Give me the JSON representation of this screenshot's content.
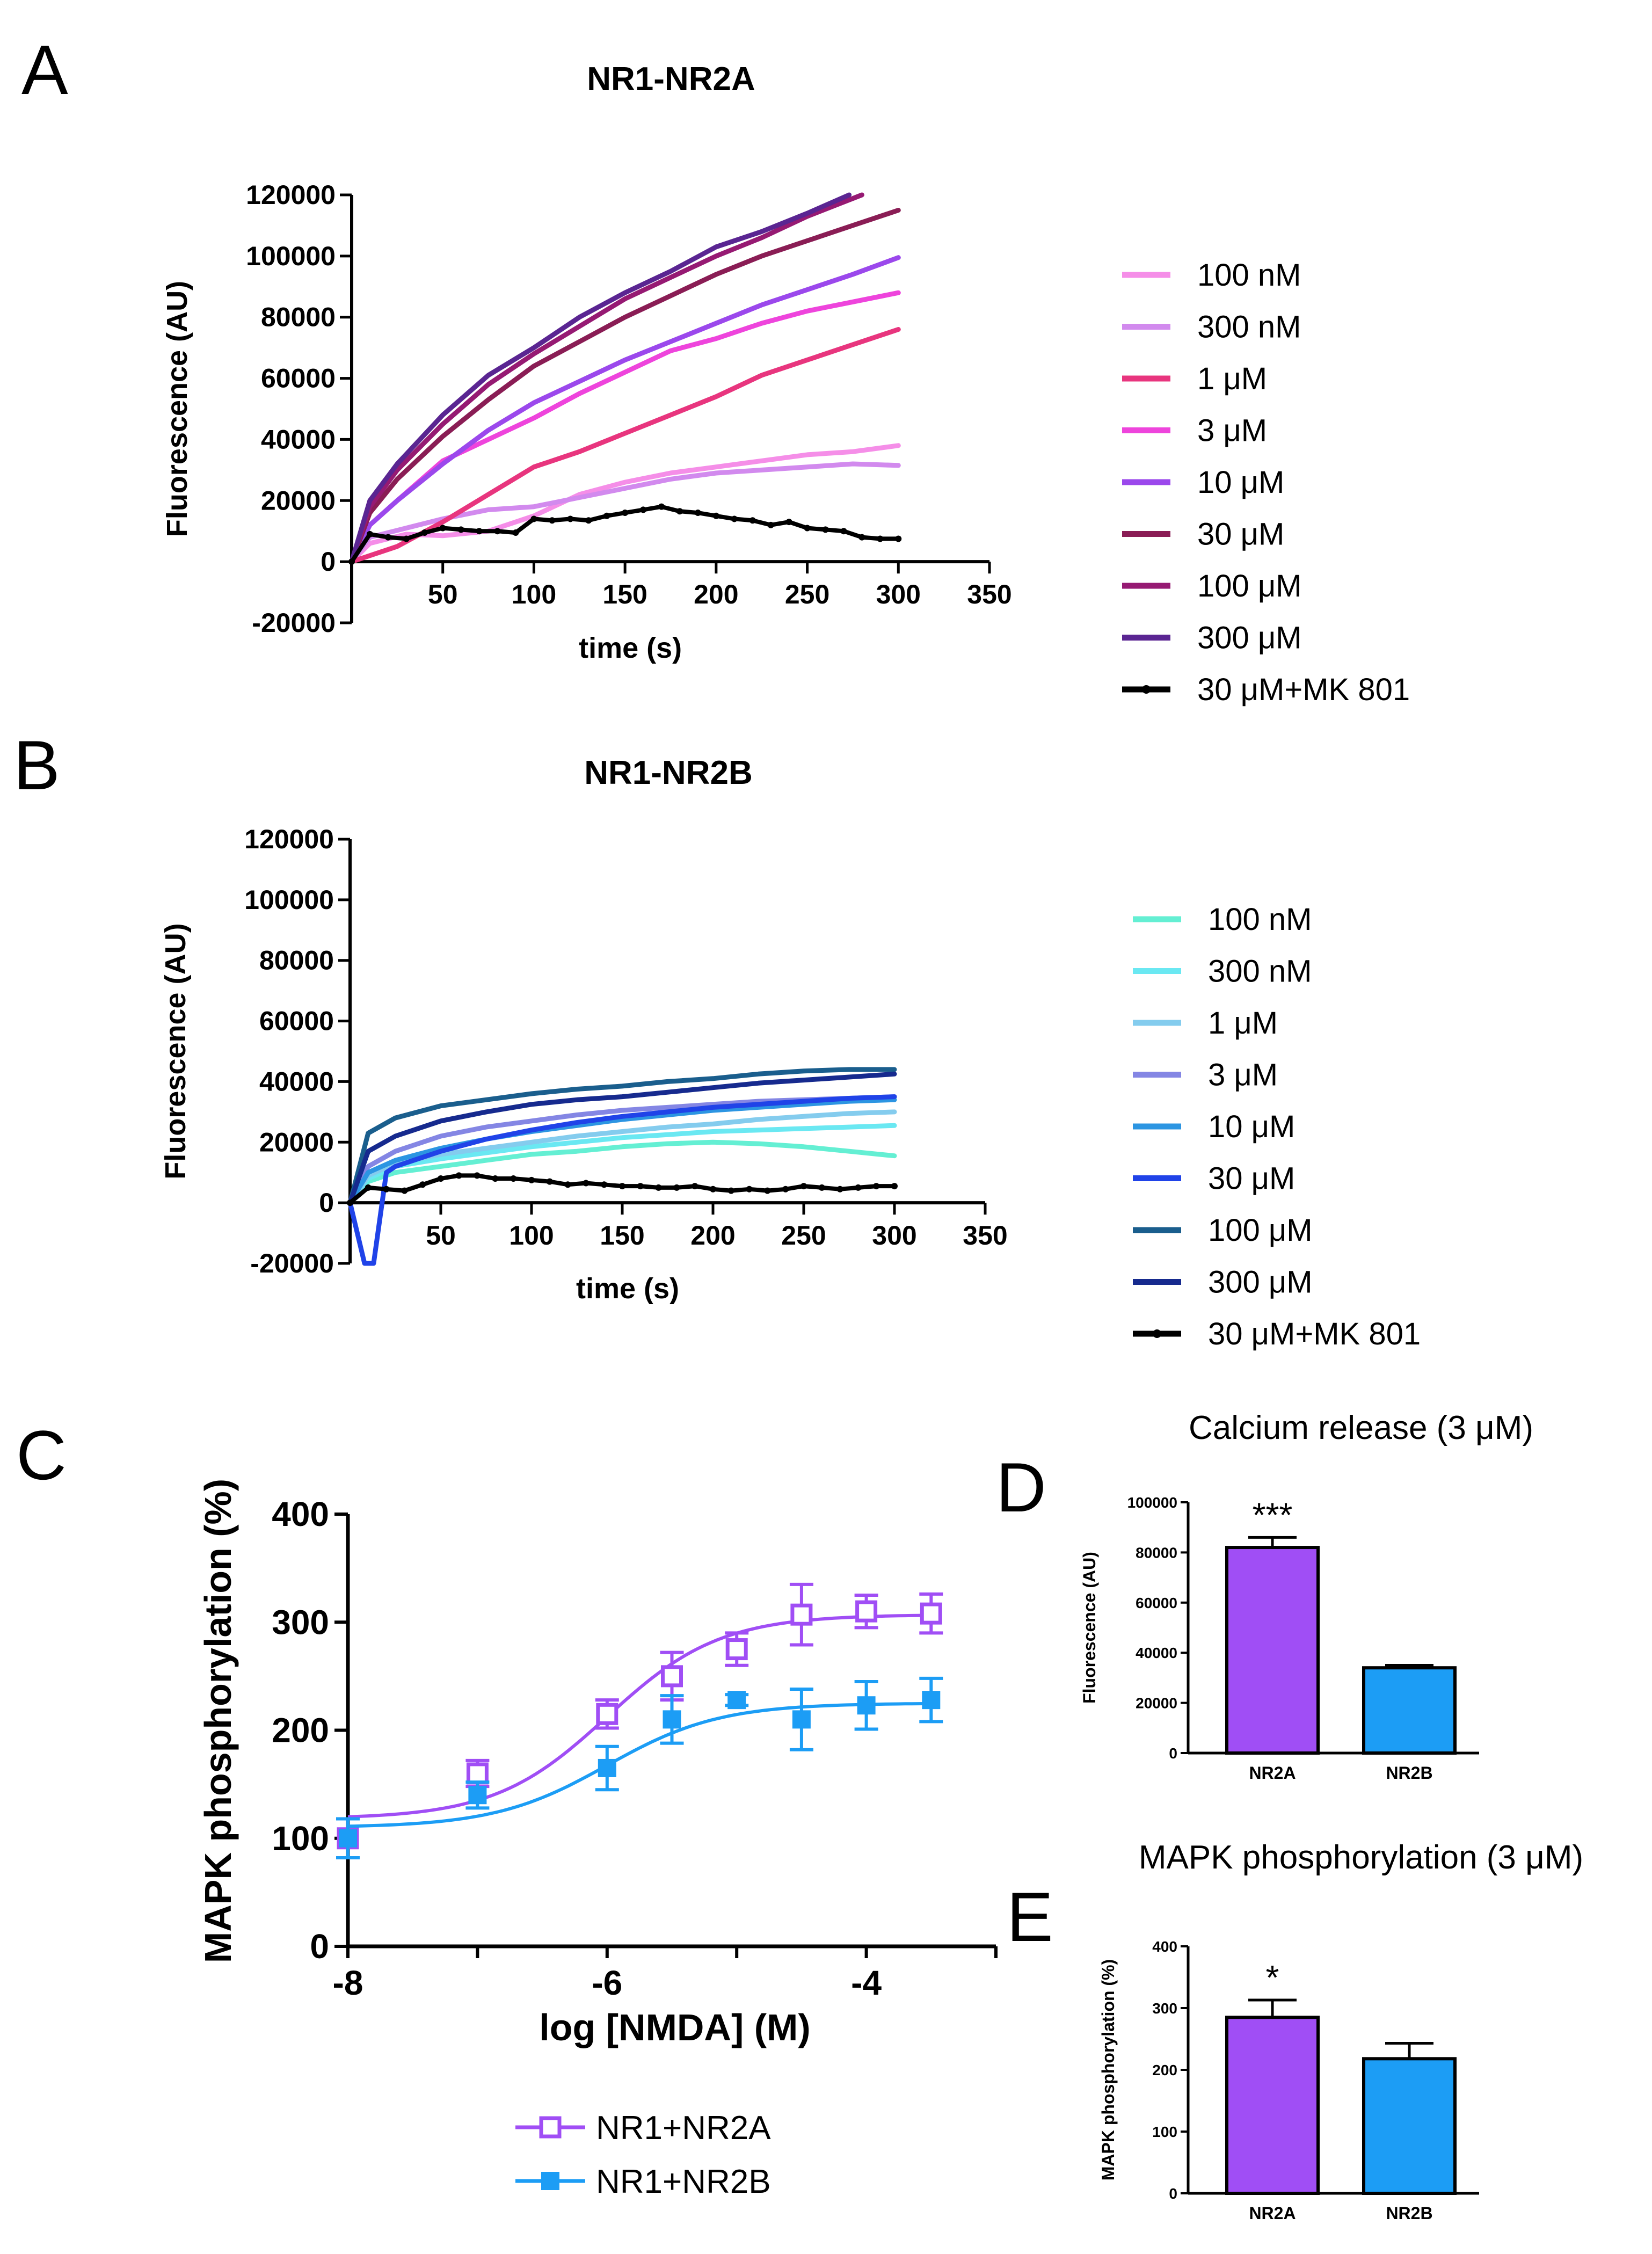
{
  "panel_labels": {
    "A": "A",
    "B": "B",
    "C": "C",
    "D": "D",
    "E": "E"
  },
  "colors": {
    "A": [
      "#f58ee8",
      "#d28aee",
      "#e8357e",
      "#ee44dc",
      "#9b48ec",
      "#8a1d55",
      "#961a73",
      "#5a2592",
      "#000000"
    ],
    "B": [
      "#64efd3",
      "#6ae8f2",
      "#84ccee",
      "#8486e4",
      "#2c95e2",
      "#2043e8",
      "#1a5e8d",
      "#162a8e",
      "#000000"
    ],
    "nr2a": "#a04ef5",
    "nr2b": "#1c9df5"
  },
  "chart_data": [
    {
      "id": "A",
      "type": "line",
      "title": "NR1-NR2A",
      "xlabel": "time (s)",
      "ylabel": "Fluorescence (AU)",
      "xlim": [
        0,
        350
      ],
      "ylim": [
        -20000,
        120000
      ],
      "xticks": [
        50,
        100,
        150,
        200,
        250,
        300,
        350
      ],
      "yticks": [
        -20000,
        0,
        20000,
        40000,
        60000,
        80000,
        100000,
        120000
      ],
      "legend": [
        " 100 nM",
        "300 nM",
        "1 μM",
        "3 μM",
        "10 μM",
        "30 μM",
        "100 μM",
        "300 μM",
        "30 μM+MK 801"
      ],
      "series": [
        {
          "name": "100 nM",
          "x": [
            0,
            10,
            30,
            50,
            75,
            100,
            125,
            150,
            175,
            200,
            225,
            250,
            275,
            300
          ],
          "y": [
            0,
            6000,
            9000,
            8500,
            10000,
            15000,
            22000,
            26000,
            29000,
            31000,
            33000,
            35000,
            36000,
            38000
          ]
        },
        {
          "name": "300 nM",
          "x": [
            0,
            10,
            30,
            50,
            75,
            100,
            125,
            150,
            175,
            200,
            225,
            250,
            275,
            300
          ],
          "y": [
            0,
            8000,
            11000,
            14000,
            17000,
            18000,
            21000,
            24000,
            27000,
            29000,
            30000,
            31000,
            32000,
            31500
          ]
        },
        {
          "name": "1 μM",
          "x": [
            0,
            25,
            50,
            75,
            100,
            125,
            150,
            175,
            200,
            225,
            250,
            275,
            300
          ],
          "y": [
            0,
            5000,
            13000,
            22000,
            31000,
            36000,
            42000,
            48000,
            54000,
            61000,
            66000,
            71000,
            76000
          ]
        },
        {
          "name": "3 μM",
          "x": [
            0,
            10,
            25,
            50,
            75,
            100,
            125,
            150,
            175,
            200,
            225,
            250,
            275,
            300
          ],
          "y": [
            0,
            12000,
            20000,
            33000,
            40000,
            47000,
            55000,
            62000,
            69000,
            73000,
            78000,
            82000,
            85000,
            88000
          ]
        },
        {
          "name": "10 μM",
          "x": [
            0,
            10,
            25,
            50,
            75,
            100,
            125,
            150,
            175,
            200,
            225,
            250,
            275,
            300
          ],
          "y": [
            0,
            12000,
            20000,
            32000,
            43000,
            52000,
            59000,
            66000,
            72000,
            78000,
            84000,
            89000,
            94000,
            99500
          ]
        },
        {
          "name": "30 μM",
          "x": [
            0,
            10,
            25,
            50,
            75,
            100,
            125,
            150,
            175,
            200,
            225,
            250,
            275,
            300
          ],
          "y": [
            0,
            16000,
            27000,
            41000,
            53000,
            64000,
            72000,
            80000,
            87000,
            94000,
            100000,
            105000,
            110000,
            115000
          ]
        },
        {
          "name": "100 μM",
          "x": [
            0,
            10,
            25,
            50,
            75,
            100,
            125,
            150,
            175,
            200,
            225,
            250,
            280
          ],
          "y": [
            0,
            18000,
            30000,
            45000,
            58000,
            68000,
            77000,
            86000,
            93000,
            100000,
            106000,
            113000,
            120000
          ]
        },
        {
          "name": "300 μM",
          "x": [
            0,
            10,
            25,
            50,
            75,
            100,
            125,
            150,
            175,
            200,
            225,
            250,
            273
          ],
          "y": [
            0,
            20000,
            32000,
            48000,
            61000,
            70000,
            80000,
            88000,
            95000,
            103000,
            108000,
            114000,
            120000
          ]
        },
        {
          "name": "30 μM+MK 801",
          "marker": true,
          "x": [
            0,
            10,
            20,
            30,
            40,
            50,
            60,
            70,
            80,
            90,
            100,
            110,
            120,
            130,
            140,
            150,
            160,
            170,
            180,
            190,
            200,
            210,
            220,
            230,
            240,
            250,
            260,
            270,
            280,
            290,
            300
          ],
          "y": [
            0,
            9000,
            8000,
            7500,
            9500,
            11000,
            10500,
            10000,
            10000,
            9500,
            14000,
            13500,
            14000,
            13500,
            15000,
            16000,
            17000,
            18000,
            16500,
            16000,
            15000,
            14000,
            13500,
            12000,
            13000,
            11000,
            10500,
            10000,
            8000,
            7500,
            7500
          ]
        }
      ]
    },
    {
      "id": "B",
      "type": "line",
      "title": "NR1-NR2B",
      "xlabel": "time (s)",
      "ylabel": "Fluorescence (AU)",
      "xlim": [
        0,
        350
      ],
      "ylim": [
        -20000,
        120000
      ],
      "xticks": [
        50,
        100,
        150,
        200,
        250,
        300,
        350
      ],
      "yticks": [
        -20000,
        0,
        20000,
        40000,
        60000,
        80000,
        100000,
        120000
      ],
      "legend": [
        " 100 nM",
        "300 nM",
        "1 μM",
        "3 μM",
        "10 μM",
        "30 μM",
        "100 μM",
        "300 μM",
        "30 μM+MK 801"
      ],
      "series": [
        {
          "name": "100 nM",
          "x": [
            0,
            10,
            25,
            50,
            75,
            100,
            125,
            150,
            175,
            200,
            225,
            250,
            275,
            300
          ],
          "y": [
            0,
            7000,
            10000,
            12000,
            14000,
            16000,
            17000,
            18500,
            19500,
            20000,
            19500,
            18500,
            17000,
            15500
          ]
        },
        {
          "name": "300 nM",
          "x": [
            0,
            10,
            25,
            50,
            75,
            100,
            125,
            150,
            175,
            200,
            225,
            250,
            275,
            300
          ],
          "y": [
            0,
            8000,
            12000,
            14500,
            16500,
            18500,
            20000,
            21500,
            22500,
            23500,
            24000,
            24500,
            25000,
            25500
          ]
        },
        {
          "name": "1 μM",
          "x": [
            0,
            10,
            25,
            50,
            75,
            100,
            125,
            150,
            175,
            200,
            225,
            250,
            275,
            300
          ],
          "y": [
            0,
            9000,
            13000,
            16000,
            18000,
            20000,
            22000,
            23500,
            25000,
            26000,
            27500,
            28500,
            29500,
            30000
          ]
        },
        {
          "name": "3 μM",
          "x": [
            0,
            10,
            25,
            50,
            75,
            100,
            125,
            150,
            175,
            200,
            225,
            250,
            275,
            300
          ],
          "y": [
            0,
            12000,
            17000,
            22000,
            25000,
            27000,
            29000,
            30500,
            31500,
            32500,
            33500,
            34000,
            34500,
            35000
          ]
        },
        {
          "name": "10 μM",
          "x": [
            0,
            10,
            25,
            50,
            75,
            100,
            125,
            150,
            175,
            200,
            225,
            250,
            275,
            300
          ],
          "y": [
            0,
            10000,
            14000,
            18000,
            21000,
            23500,
            25500,
            27500,
            29000,
            30500,
            31500,
            32500,
            33500,
            34000
          ]
        },
        {
          "name": "30 μM",
          "x": [
            0,
            8,
            13,
            20,
            25,
            50,
            75,
            100,
            125,
            150,
            175,
            200,
            225,
            250,
            275,
            300
          ],
          "y": [
            0,
            -20000,
            -20000,
            10000,
            12000,
            17000,
            21000,
            24000,
            26500,
            28500,
            30000,
            31500,
            32500,
            33500,
            34500,
            35000
          ]
        },
        {
          "name": "100 μM",
          "x": [
            0,
            10,
            25,
            50,
            75,
            100,
            125,
            150,
            175,
            200,
            225,
            250,
            275,
            300
          ],
          "y": [
            0,
            23000,
            28000,
            32000,
            34000,
            36000,
            37500,
            38500,
            40000,
            41000,
            42500,
            43500,
            44000,
            44000
          ]
        },
        {
          "name": "300 μM",
          "x": [
            0,
            10,
            25,
            50,
            75,
            100,
            125,
            150,
            175,
            200,
            225,
            250,
            275,
            300
          ],
          "y": [
            0,
            17000,
            22000,
            27000,
            30000,
            32500,
            34000,
            35000,
            36500,
            38000,
            39500,
            40500,
            41500,
            42500
          ]
        },
        {
          "name": "30 μM+MK 801",
          "marker": true,
          "x": [
            0,
            10,
            20,
            30,
            40,
            50,
            60,
            70,
            80,
            90,
            100,
            110,
            120,
            130,
            140,
            150,
            160,
            170,
            180,
            190,
            200,
            210,
            220,
            230,
            240,
            250,
            260,
            270,
            280,
            290,
            300
          ],
          "y": [
            0,
            5000,
            4500,
            4000,
            6000,
            8000,
            9000,
            9000,
            8000,
            8000,
            7500,
            7000,
            6000,
            6500,
            6000,
            5500,
            5500,
            5000,
            5000,
            5500,
            4500,
            4000,
            4500,
            4000,
            4500,
            5500,
            5000,
            4500,
            5000,
            5500,
            5500
          ]
        }
      ]
    },
    {
      "id": "C",
      "type": "scatter",
      "xlabel": "log [NMDA] (M)",
      "ylabel": "MAPK phosphorylation (%)",
      "xlim": [
        -8,
        -3
      ],
      "ylim": [
        0,
        400
      ],
      "xticks": [
        -8,
        -6,
        -4
      ],
      "yticks": [
        0,
        100,
        200,
        300,
        400
      ],
      "series": [
        {
          "name": "NR1+NR2A",
          "x": [
            -8,
            -7,
            -6,
            -5.5,
            -5,
            -4.5,
            -4,
            -3.5
          ],
          "y": [
            100,
            160,
            215,
            250,
            275,
            307,
            310,
            308
          ],
          "err": [
            18,
            12,
            13,
            22,
            15,
            28,
            15,
            18
          ],
          "fit": {
            "bottom": 118,
            "top": 307,
            "logEC50": -6.0,
            "hill": 1.0
          }
        },
        {
          "name": "NR1+NR2B",
          "x": [
            -8,
            -7,
            -6,
            -5.5,
            -5,
            -4.5,
            -4,
            -3.5
          ],
          "y": [
            100,
            140,
            165,
            210,
            228,
            210,
            223,
            228
          ],
          "err": [
            18,
            12,
            20,
            22,
            5,
            28,
            22,
            20
          ],
          "fit": {
            "bottom": 110,
            "top": 225,
            "logEC50": -6.0,
            "hill": 1.0
          }
        }
      ],
      "legend": [
        "NR1+NR2A",
        "NR1+NR2B"
      ]
    },
    {
      "id": "D",
      "type": "bar",
      "title": "Calcium release (3 μM)",
      "ylabel": "Fluorescence (AU)",
      "categories": [
        "NR2A",
        "NR2B"
      ],
      "values": [
        82000,
        34000
      ],
      "errors": [
        4000,
        1000
      ],
      "ylim": [
        0,
        100000
      ],
      "yticks": [
        0,
        20000,
        40000,
        60000,
        80000,
        100000
      ],
      "significance": [
        "***",
        ""
      ]
    },
    {
      "id": "E",
      "type": "bar",
      "title": "MAPK phosphorylation (3 μM)",
      "ylabel": "MAPK phosphorylation (%)",
      "categories": [
        "NR2A",
        "NR2B"
      ],
      "values": [
        285,
        218
      ],
      "errors": [
        28,
        25
      ],
      "ylim": [
        0,
        400
      ],
      "yticks": [
        0,
        100,
        200,
        300,
        400
      ],
      "significance": [
        "*",
        ""
      ]
    }
  ]
}
